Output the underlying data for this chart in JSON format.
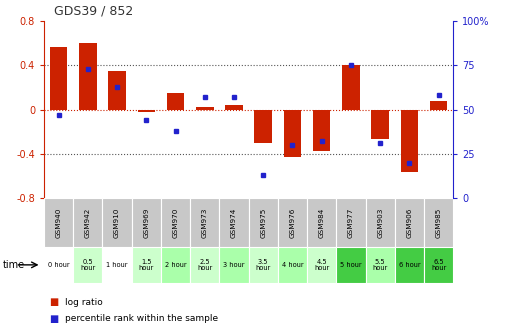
{
  "title": "GDS39 / 852",
  "samples": [
    "GSM940",
    "GSM942",
    "GSM910",
    "GSM969",
    "GSM970",
    "GSM973",
    "GSM974",
    "GSM975",
    "GSM976",
    "GSM984",
    "GSM977",
    "GSM903",
    "GSM906",
    "GSM985"
  ],
  "time_labels": [
    "0 hour",
    "0.5\nhour",
    "1 hour",
    "1.5\nhour",
    "2 hour",
    "2.5\nhour",
    "3 hour",
    "3.5\nhour",
    "4 hour",
    "4.5\nhour",
    "5 hour",
    "5.5\nhour",
    "6 hour",
    "6.5\nhour"
  ],
  "log_ratio": [
    0.57,
    0.6,
    0.35,
    -0.02,
    0.15,
    0.02,
    0.04,
    -0.3,
    -0.43,
    -0.38,
    0.4,
    -0.27,
    -0.57,
    0.08
  ],
  "percentile": [
    47,
    73,
    63,
    44,
    38,
    57,
    57,
    13,
    30,
    32,
    75,
    31,
    20,
    58
  ],
  "ylim_left": [
    -0.8,
    0.8
  ],
  "ylim_right": [
    0,
    100
  ],
  "yticks_left": [
    -0.8,
    -0.4,
    0.0,
    0.4,
    0.8
  ],
  "ytick_labels_left": [
    "-0.8",
    "-0.4",
    "0",
    "0.4",
    "0.8"
  ],
  "yticks_right": [
    0,
    25,
    50,
    75,
    100
  ],
  "ytick_labels_right": [
    "0",
    "25",
    "50",
    "75",
    "100%"
  ],
  "bar_color": "#cc2200",
  "dot_color": "#2222cc",
  "left_axis_color": "#cc2200",
  "right_axis_color": "#2222cc",
  "sample_bg": "#c8c8c8",
  "time_bg": [
    "#ffffff",
    "#ccffcc",
    "#ffffff",
    "#ccffcc",
    "#aaffaa",
    "#ccffcc",
    "#aaffaa",
    "#ccffcc",
    "#aaffaa",
    "#ccffcc",
    "#44cc44",
    "#aaffaa",
    "#44cc44",
    "#44cc44"
  ],
  "legend_red": "#cc2200",
  "legend_blue": "#2222cc"
}
